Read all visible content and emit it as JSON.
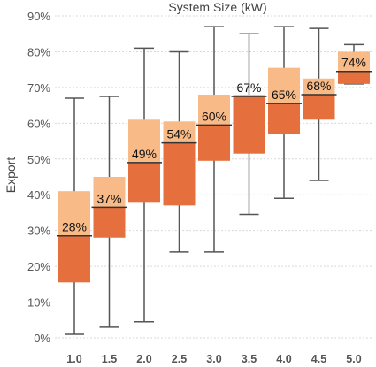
{
  "chart_data": {
    "type": "box",
    "title": "System Size (kW)",
    "xlabel": "",
    "ylabel": "Export",
    "ylim": [
      0,
      90
    ],
    "yticks": [
      "0%",
      "10%",
      "20%",
      "30%",
      "40%",
      "50%",
      "60%",
      "70%",
      "80%",
      "90%"
    ],
    "grid": true,
    "categories": [
      "1.0",
      "1.5",
      "2.0",
      "2.5",
      "3.0",
      "3.5",
      "4.0",
      "4.5",
      "5.0"
    ],
    "boxes": [
      {
        "whisker_low": 1,
        "q1": 15.5,
        "median": 28.5,
        "q3": 41,
        "whisker_high": 67,
        "label": "28%"
      },
      {
        "whisker_low": 3,
        "q1": 28,
        "median": 36.5,
        "q3": 45,
        "whisker_high": 67.5,
        "label": "37%"
      },
      {
        "whisker_low": 4.5,
        "q1": 38,
        "median": 49,
        "q3": 61,
        "whisker_high": 81,
        "label": "49%"
      },
      {
        "whisker_low": 24,
        "q1": 37,
        "median": 54.5,
        "q3": 60.5,
        "whisker_high": 80,
        "label": "54%"
      },
      {
        "whisker_low": 24,
        "q1": 49.5,
        "median": 59.5,
        "q3": 68,
        "whisker_high": 87,
        "label": "60%"
      },
      {
        "whisker_low": 34.5,
        "q1": 51.5,
        "median": 67.5,
        "q3": 68,
        "whisker_high": 85,
        "label": "67%"
      },
      {
        "whisker_low": 39,
        "q1": 57,
        "median": 65.5,
        "q3": 75.5,
        "whisker_high": 87,
        "label": "65%"
      },
      {
        "whisker_low": 44,
        "q1": 61,
        "median": 68,
        "q3": 72.5,
        "whisker_high": 86.5,
        "label": "68%"
      },
      {
        "whisker_low": 71,
        "q1": 71,
        "median": 74.5,
        "q3": 80,
        "whisker_high": 82,
        "label": "74%"
      }
    ],
    "colors": {
      "upper_box": "#f8bb87",
      "lower_box": "#e6703d",
      "whisker": "#555555",
      "median_line": "#333333",
      "grid": "#d9d9d9"
    }
  }
}
